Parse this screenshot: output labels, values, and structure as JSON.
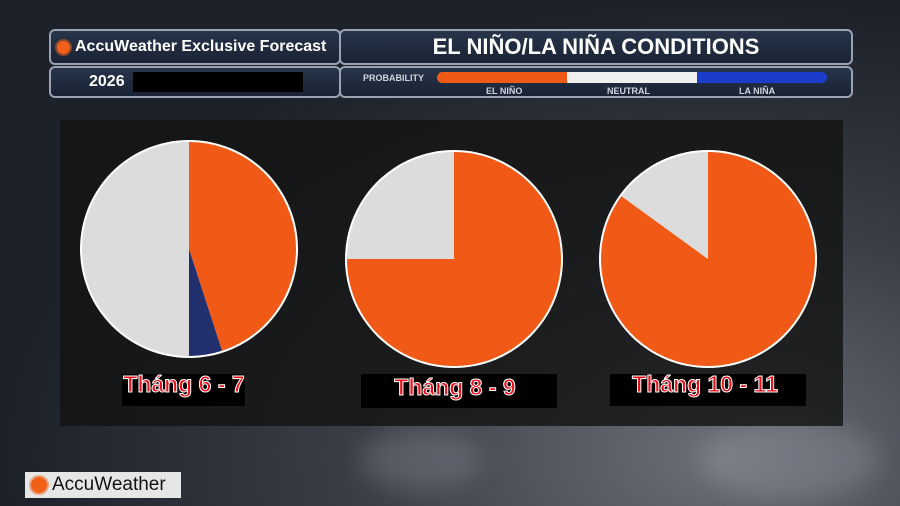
{
  "header": {
    "brand": "AccuWeather Exclusive Forecast",
    "year": "2026",
    "title": "EL NIÑO/LA NIÑA CONDITIONS",
    "probability_label": "PROBABILITY",
    "legend": [
      "EL NIÑO",
      "NEUTRAL",
      "LA NIÑA"
    ]
  },
  "footer": {
    "logo": "AccuWeather"
  },
  "colors": {
    "el_nino": "#f05a16",
    "neutral": "#dcdcdc",
    "la_nina": "#22306e",
    "legend_la_nina": "#1c3ccc"
  },
  "chart_data": [
    {
      "type": "pie",
      "title": "Tháng 6 - 7",
      "categories": [
        "EL NIÑO",
        "LA NIÑA",
        "NEUTRAL"
      ],
      "values": [
        45,
        5,
        50
      ]
    },
    {
      "type": "pie",
      "title": "Tháng 8 - 9",
      "categories": [
        "EL NIÑO",
        "LA NIÑA",
        "NEUTRAL"
      ],
      "values": [
        75,
        0,
        25
      ]
    },
    {
      "type": "pie",
      "title": "Tháng 10 - 11",
      "categories": [
        "EL NIÑO",
        "LA NIÑA",
        "NEUTRAL"
      ],
      "values": [
        85,
        0,
        15
      ]
    }
  ]
}
